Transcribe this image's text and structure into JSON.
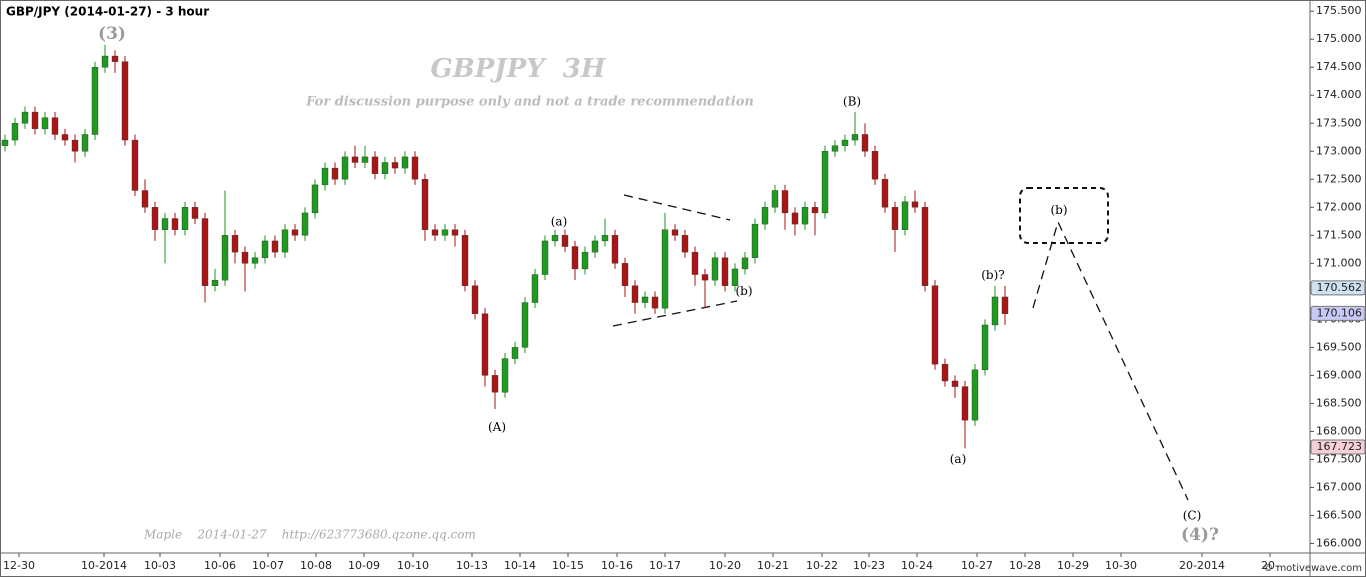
{
  "chart_data": {
    "type": "candlestick",
    "title": "GBP/JPY (2014-01-27) - 3 hour",
    "watermark": "GBPJPY  3H",
    "subtitle": "For discussion purpose only and not a trade recommendation",
    "credit": "Maple    2014-01-27    http://623773680.qzone.qq.com",
    "footer": "© motivewave.com",
    "up_color": "#1e9a1e",
    "down_color": "#a81616",
    "open": [
      173.1,
      173.2,
      173.5,
      173.7,
      173.4,
      173.6,
      173.3,
      173.2,
      173.0,
      173.3,
      174.5,
      174.7,
      174.6,
      173.2,
      172.3,
      172.0,
      171.6,
      171.8,
      171.6,
      172.0,
      171.8,
      170.6,
      170.7,
      171.5,
      171.2,
      171.0,
      171.1,
      171.4,
      171.2,
      171.6,
      171.5,
      171.9,
      172.4,
      172.7,
      172.5,
      172.9,
      172.8,
      172.9,
      172.6,
      172.8,
      172.7,
      172.9,
      172.5,
      171.6,
      171.5,
      171.6,
      171.5,
      170.6,
      170.1,
      169.0,
      168.7,
      169.3,
      169.5,
      170.3,
      170.8,
      171.4,
      171.5,
      171.3,
      170.9,
      171.2,
      171.4,
      171.5,
      171.0,
      170.6,
      170.3,
      170.4,
      170.2,
      171.6,
      171.5,
      171.2,
      170.8,
      170.7,
      171.1,
      170.6,
      170.9,
      171.1,
      171.7,
      172.0,
      172.3,
      171.9,
      171.7,
      172.0,
      171.9,
      173.0,
      173.1,
      173.2,
      173.3,
      173.0,
      172.5,
      172.0,
      171.6,
      172.1,
      172.0,
      170.6,
      169.2,
      168.9,
      168.8,
      168.2,
      169.1,
      169.9,
      170.4
    ],
    "high": [
      173.3,
      173.6,
      173.8,
      173.8,
      173.7,
      173.7,
      173.4,
      173.3,
      173.4,
      174.6,
      174.9,
      174.8,
      174.7,
      173.3,
      172.5,
      172.1,
      171.9,
      171.9,
      172.1,
      172.1,
      171.9,
      170.9,
      172.3,
      171.6,
      171.3,
      171.2,
      171.5,
      171.5,
      171.7,
      171.7,
      172.0,
      172.5,
      172.8,
      172.8,
      173.0,
      173.1,
      173.1,
      173.0,
      172.9,
      172.9,
      173.0,
      173.0,
      172.6,
      171.7,
      171.7,
      171.7,
      171.6,
      170.7,
      170.2,
      169.1,
      169.4,
      169.6,
      170.4,
      170.9,
      171.5,
      171.6,
      171.6,
      171.4,
      171.3,
      171.5,
      171.8,
      171.6,
      171.1,
      170.7,
      170.5,
      170.5,
      171.9,
      171.7,
      171.6,
      171.3,
      170.9,
      171.2,
      171.2,
      171.0,
      171.2,
      171.8,
      172.1,
      172.4,
      172.4,
      172.0,
      172.1,
      172.1,
      173.1,
      173.2,
      173.3,
      173.7,
      173.5,
      173.1,
      172.6,
      172.1,
      172.2,
      172.3,
      172.1,
      170.7,
      169.3,
      169.0,
      168.9,
      169.2,
      170.0,
      170.6,
      170.6
    ],
    "low": [
      173.0,
      173.1,
      173.4,
      173.3,
      173.3,
      173.2,
      173.1,
      172.8,
      172.9,
      173.2,
      174.4,
      174.4,
      173.1,
      172.2,
      171.9,
      171.4,
      171.0,
      171.5,
      171.5,
      171.7,
      170.3,
      170.5,
      170.6,
      171.0,
      170.5,
      170.9,
      171.0,
      171.1,
      171.1,
      171.4,
      171.4,
      171.8,
      172.3,
      172.4,
      172.4,
      172.7,
      172.7,
      172.5,
      172.5,
      172.6,
      172.6,
      172.4,
      171.4,
      171.4,
      171.4,
      171.3,
      170.5,
      170.0,
      168.8,
      168.4,
      168.6,
      169.2,
      169.4,
      170.2,
      170.7,
      171.3,
      171.2,
      170.7,
      170.8,
      171.1,
      171.3,
      170.9,
      170.4,
      170.1,
      170.2,
      170.1,
      170.1,
      171.4,
      171.1,
      170.6,
      170.2,
      170.6,
      170.5,
      170.5,
      170.8,
      171.0,
      171.6,
      171.9,
      171.6,
      171.5,
      171.6,
      171.5,
      171.8,
      172.9,
      173.0,
      173.1,
      172.9,
      172.4,
      171.9,
      171.2,
      171.5,
      171.9,
      170.5,
      169.1,
      168.8,
      168.6,
      167.7,
      168.1,
      169.0,
      169.8,
      169.9
    ],
    "close": [
      173.2,
      173.5,
      173.7,
      173.4,
      173.6,
      173.3,
      173.2,
      173.0,
      173.3,
      174.5,
      174.7,
      174.6,
      173.2,
      172.3,
      172.0,
      171.6,
      171.8,
      171.6,
      172.0,
      171.8,
      170.6,
      170.7,
      171.5,
      171.2,
      171.0,
      171.1,
      171.4,
      171.2,
      171.6,
      171.5,
      171.9,
      172.4,
      172.7,
      172.5,
      172.9,
      172.8,
      172.9,
      172.6,
      172.8,
      172.7,
      172.9,
      172.5,
      171.6,
      171.5,
      171.6,
      171.5,
      170.6,
      170.1,
      169.0,
      168.7,
      169.3,
      169.5,
      170.3,
      170.8,
      171.4,
      171.5,
      171.3,
      170.9,
      171.2,
      171.4,
      171.5,
      171.0,
      170.6,
      170.3,
      170.4,
      170.2,
      171.6,
      171.5,
      171.2,
      170.8,
      170.7,
      171.1,
      170.6,
      170.9,
      171.1,
      171.7,
      172.0,
      172.3,
      171.9,
      171.7,
      172.0,
      171.9,
      173.0,
      173.1,
      173.2,
      173.3,
      173.0,
      172.5,
      172.0,
      171.6,
      172.1,
      172.0,
      170.6,
      169.2,
      168.9,
      168.8,
      168.2,
      169.1,
      169.9,
      170.4,
      170.1
    ],
    "xlim": [
      -0.5,
      130.5
    ],
    "xticks": [
      {
        "value": 1.4,
        "label": "12-30"
      },
      {
        "value": 9.9,
        "label": "10-2014"
      },
      {
        "value": 15.5,
        "label": "10-03"
      },
      {
        "value": 21.5,
        "label": "10-06"
      },
      {
        "value": 26.3,
        "label": "10-07"
      },
      {
        "value": 31.1,
        "label": "10-08"
      },
      {
        "value": 35.9,
        "label": "10-09"
      },
      {
        "value": 40.8,
        "label": "10-10"
      },
      {
        "value": 46.7,
        "label": "10-13"
      },
      {
        "value": 51.5,
        "label": "10-14"
      },
      {
        "value": 56.3,
        "label": "10-15"
      },
      {
        "value": 61.2,
        "label": "10-16"
      },
      {
        "value": 66,
        "label": "10-17"
      },
      {
        "value": 72,
        "label": "10-20"
      },
      {
        "value": 76.8,
        "label": "10-21"
      },
      {
        "value": 81.7,
        "label": "10-22"
      },
      {
        "value": 86.4,
        "label": "10-23"
      },
      {
        "value": 91.2,
        "label": "10-24"
      },
      {
        "value": 97.2,
        "label": "10-27"
      },
      {
        "value": 102,
        "label": "10-28"
      },
      {
        "value": 106.8,
        "label": "10-29"
      },
      {
        "value": 111.6,
        "label": "10-30"
      },
      {
        "value": 119.7,
        "label": "20-2014"
      },
      {
        "value": 126.5,
        "label": "20-"
      }
    ],
    "ylim": [
      165.83,
      175.7
    ],
    "yticks": [
      {
        "value": 166,
        "label": "166.000"
      },
      {
        "value": 166.5,
        "label": "166.500"
      },
      {
        "value": 167,
        "label": "167.000"
      },
      {
        "value": 167.5,
        "label": "167.500"
      },
      {
        "value": 168,
        "label": "168.000"
      },
      {
        "value": 168.5,
        "label": "168.500"
      },
      {
        "value": 169,
        "label": "169.000"
      },
      {
        "value": 169.5,
        "label": "169.500"
      },
      {
        "value": 170,
        "label": "170.000"
      },
      {
        "value": 170.5,
        "label": "170.500"
      },
      {
        "value": 171,
        "label": "171.000"
      },
      {
        "value": 171.5,
        "label": "171.500"
      },
      {
        "value": 172,
        "label": "172.000"
      },
      {
        "value": 172.5,
        "label": "172.500"
      },
      {
        "value": 173,
        "label": "173.000"
      },
      {
        "value": 173.5,
        "label": "173.500"
      },
      {
        "value": 174,
        "label": "174.000"
      },
      {
        "value": 174.5,
        "label": "174.500"
      },
      {
        "value": 175,
        "label": "175.000"
      },
      {
        "value": 175.5,
        "label": "175.500"
      }
    ],
    "price_markers": [
      {
        "value": 170.562,
        "color": "#cfe2f3"
      },
      {
        "value": 170.106,
        "color": "#c9c9f5"
      },
      {
        "value": 167.723,
        "color": "#f5d0d6"
      }
    ],
    "annotations": [
      {
        "text": "(3)",
        "x": 10.7,
        "y": 175.08,
        "color": "#999999"
      },
      {
        "text": "(a)",
        "x": 55.4,
        "y": 171.74,
        "color": "#000000"
      },
      {
        "text": "(b)",
        "x": 73.9,
        "y": 170.5,
        "color": "#000000"
      },
      {
        "text": "(A)",
        "x": 49.2,
        "y": 168.07,
        "color": "#000000"
      },
      {
        "text": "(B)",
        "x": 84.7,
        "y": 173.88,
        "color": "#000000"
      },
      {
        "text": "(b)?",
        "x": 98.8,
        "y": 170.78,
        "color": "#000000"
      },
      {
        "text": "(a)",
        "x": 95.3,
        "y": 167.5,
        "color": "#000000"
      },
      {
        "text": "(b)",
        "x": 105.4,
        "y": 171.94,
        "color": "#000000"
      },
      {
        "text": "(C)",
        "x": 118.7,
        "y": 166.49,
        "color": "#000000"
      },
      {
        "text": "(4)?",
        "x": 119.5,
        "y": 166.14,
        "color": "#999999"
      }
    ]
  }
}
